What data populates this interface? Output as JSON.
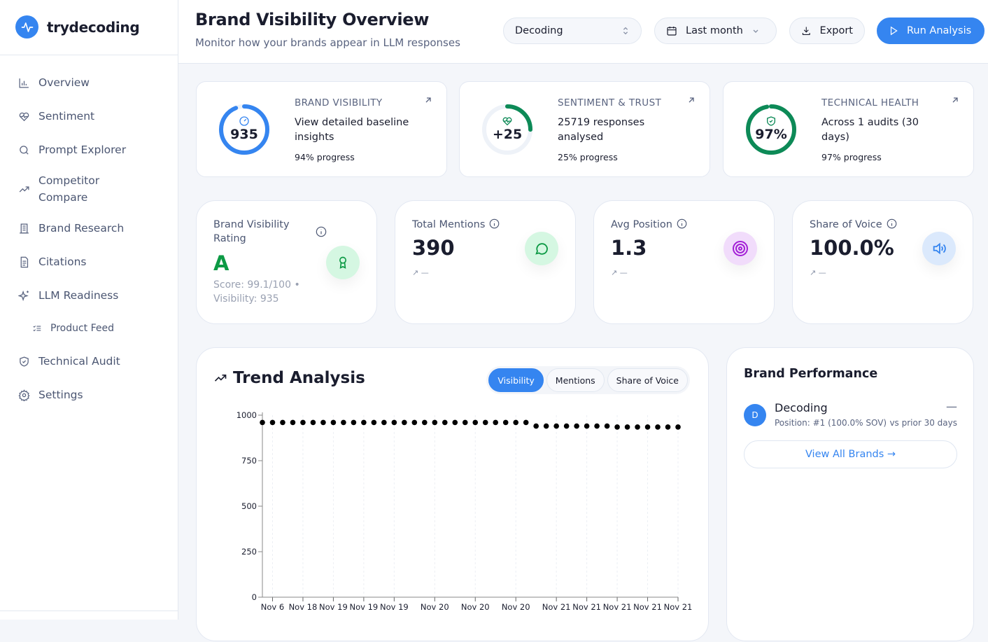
{
  "app": {
    "name": "trydecoding",
    "accent": "#3585f0"
  },
  "sidebar": {
    "items": [
      {
        "label": "Overview",
        "icon": "bar-chart-icon"
      },
      {
        "label": "Sentiment",
        "icon": "heart-pulse-icon"
      },
      {
        "label": "Prompt Explorer",
        "icon": "search-icon"
      },
      {
        "label": "Competitor Compare",
        "icon": "trending-up-icon"
      },
      {
        "label": "Brand Research",
        "icon": "building-icon"
      },
      {
        "label": "Citations",
        "icon": "document-icon"
      },
      {
        "label": "LLM Readiness",
        "icon": "sparkles-icon"
      },
      {
        "label": "Product Feed",
        "icon": "list-check-icon"
      },
      {
        "label": "Technical Audit",
        "icon": "shield-check-icon"
      },
      {
        "label": "Settings",
        "icon": "gear-icon"
      }
    ]
  },
  "header": {
    "title": "Brand Visibility Overview",
    "subtitle": "Monitor how your brands appear in LLM responses",
    "brand_select": "Decoding",
    "date_range": "Last month",
    "export_label": "Export",
    "run_label": "Run Analysis"
  },
  "summary_cards": [
    {
      "label": "BRAND VISIBILITY",
      "value": "935",
      "desc": "View detailed baseline insights",
      "progress_text": "94% progress",
      "progress": 94,
      "color": "#3585f0"
    },
    {
      "label": "SENTIMENT & TRUST",
      "value": "+25",
      "desc": "25719 responses analysed",
      "progress_text": "25% progress",
      "progress": 25,
      "color": "#0d8a57"
    },
    {
      "label": "TECHNICAL HEALTH",
      "value": "97%",
      "desc": "Across 1 audits (30 days)",
      "progress_text": "97% progress",
      "progress": 97,
      "color": "#0d8a57"
    }
  ],
  "metrics": {
    "rating": {
      "label": "Brand Visibility Rating",
      "grade": "A",
      "detail": "Score: 99.1/100 • Visibility: 935"
    },
    "mentions": {
      "label": "Total Mentions",
      "value": "390",
      "trend": "—"
    },
    "position": {
      "label": "Avg Position",
      "value": "1.3",
      "trend": "—"
    },
    "sov": {
      "label": "Share of Voice",
      "value": "100.0%",
      "trend": "—"
    }
  },
  "trend": {
    "title": "Trend Analysis",
    "tabs": [
      "Visibility",
      "Mentions",
      "Share of Voice"
    ],
    "active_tab": "Visibility"
  },
  "chart_data": {
    "type": "scatter",
    "ylim": [
      0,
      1000
    ],
    "yticks": [
      0,
      250,
      500,
      750,
      1000
    ],
    "xtick_labels": [
      "Nov 6",
      "Nov 18",
      "Nov 19",
      "Nov 19",
      "Nov 19",
      "Nov 20",
      "Nov 20",
      "Nov 20",
      "Nov 21",
      "Nov 21",
      "Nov 21",
      "Nov 21",
      "Nov 21"
    ],
    "xtick_index": [
      1,
      4,
      7,
      10,
      13,
      17,
      21,
      25,
      29,
      32,
      35,
      38,
      41
    ],
    "values": [
      960,
      960,
      960,
      960,
      960,
      960,
      960,
      960,
      960,
      960,
      960,
      960,
      960,
      960,
      960,
      960,
      960,
      960,
      960,
      960,
      960,
      960,
      960,
      960,
      960,
      960,
      960,
      940,
      940,
      940,
      940,
      940,
      940,
      940,
      940,
      935,
      935,
      935,
      935,
      935,
      935,
      935
    ],
    "grid": "vertical dashed"
  },
  "brand_performance": {
    "title": "Brand Performance",
    "brands": [
      {
        "initial": "D",
        "name": "Decoding",
        "detail": "Position: #1 (100.0% SOV)",
        "change": "—",
        "compare": "vs prior 30 days"
      }
    ],
    "view_all": "View All Brands →"
  }
}
